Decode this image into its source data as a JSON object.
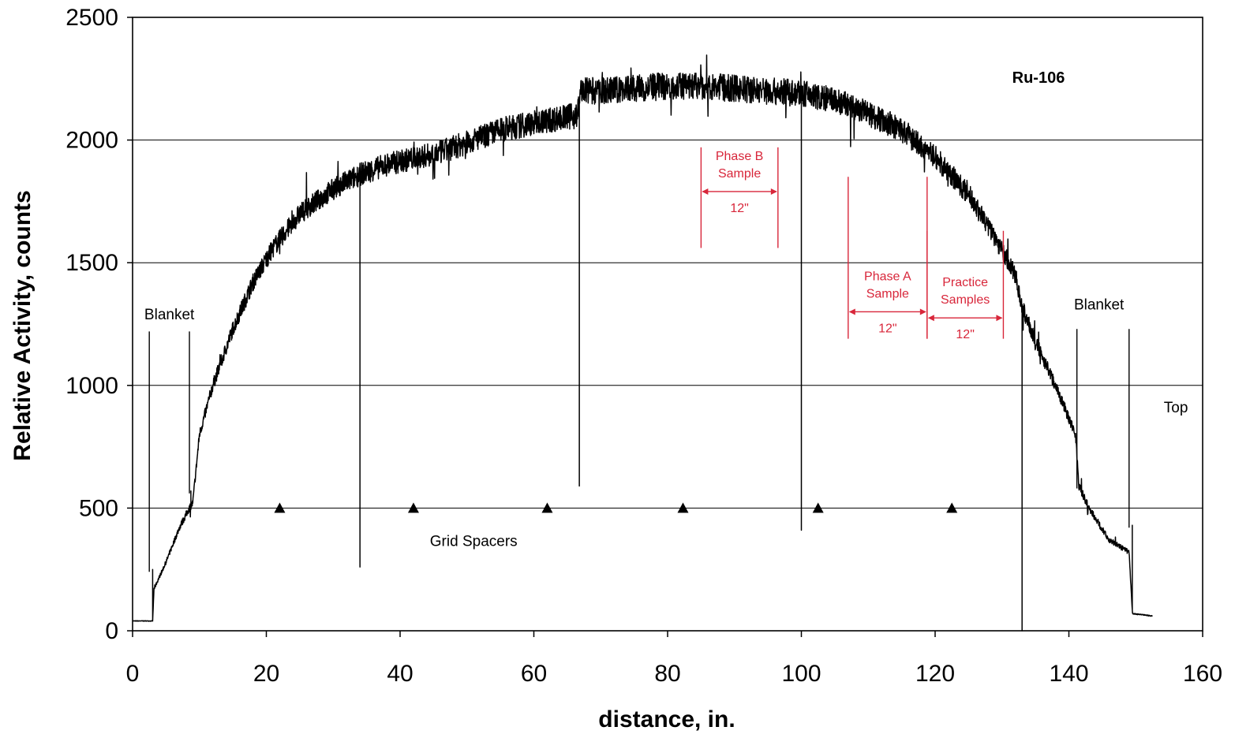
{
  "chart_data": {
    "type": "line",
    "title": "Ru-106",
    "xlabel": "distance, in.",
    "ylabel": "Relative Activity, counts",
    "xlim": [
      0,
      160
    ],
    "ylim": [
      0,
      2500
    ],
    "x_ticks": [
      "0",
      "20",
      "40",
      "60",
      "80",
      "100",
      "120",
      "140",
      "160"
    ],
    "y_ticks": [
      "0",
      "500",
      "1000",
      "1500",
      "2000",
      "2500"
    ],
    "grid": "horizontal",
    "colors": {
      "line": "#000000",
      "annotation_red": "#d8263a"
    },
    "series": [
      {
        "x": [
          0,
          3,
          3.2,
          5,
          7,
          8.5,
          9,
          10,
          12,
          15,
          18,
          21,
          25,
          30,
          34,
          38,
          42,
          46,
          50,
          55,
          60,
          64,
          66.5,
          67,
          70,
          75,
          80,
          85,
          90,
          95,
          100,
          105,
          110,
          115,
          120,
          125,
          129,
          132,
          133,
          135,
          138,
          141,
          141.5,
          143,
          146,
          149,
          149.5,
          152.5
        ],
        "y": [
          40,
          40,
          170,
          280,
          420,
          500,
          520,
          800,
          1000,
          1230,
          1420,
          1560,
          1700,
          1800,
          1860,
          1900,
          1925,
          1950,
          1990,
          2040,
          2070,
          2090,
          2100,
          2200,
          2200,
          2210,
          2220,
          2220,
          2210,
          2200,
          2190,
          2160,
          2110,
          2040,
          1930,
          1780,
          1600,
          1450,
          1320,
          1180,
          1000,
          800,
          590,
          500,
          370,
          320,
          70,
          60
        ]
      }
    ],
    "dips": [
      {
        "x": 3,
        "min": 250
      },
      {
        "x": 8.7,
        "min": 570
      },
      {
        "x": 34,
        "min": 260
      },
      {
        "x": 66.8,
        "min": 590
      },
      {
        "x": 100,
        "min": 410
      },
      {
        "x": 133,
        "min": 0
      },
      {
        "x": 141.5,
        "min": 580
      },
      {
        "x": 149.5,
        "min": 430
      }
    ],
    "grid_spacers": {
      "label": "Grid Spacers",
      "y": 500,
      "x": [
        22,
        42,
        62,
        82.3,
        102.5,
        122.5
      ]
    },
    "annotations": [
      {
        "text": "Blanket",
        "x": 5.5,
        "y": 1270
      },
      {
        "text": "Blanket",
        "x": 144.5,
        "y": 1310
      },
      {
        "text": "Top",
        "x": 156,
        "y": 890
      },
      {
        "text": "Grid Spacers",
        "x": 51,
        "y": 345
      }
    ],
    "markers": [
      {
        "label": "Blanket",
        "x": 2.5,
        "y_from": 240,
        "y_to": 1220
      },
      {
        "label": "Blanket",
        "x": 8.5,
        "y_from": 560,
        "y_to": 1220
      },
      {
        "label": "Blanket",
        "x": 141.2,
        "y_from": 580,
        "y_to": 1230
      },
      {
        "label": "Blanket",
        "x": 149,
        "y_from": 420,
        "y_to": 1230
      }
    ],
    "sample_regions": [
      {
        "lines": [
          "Phase B",
          "Sample"
        ],
        "length": "12\"",
        "x_start": 85,
        "x_end": 96.5,
        "y_top": 1970,
        "y_bottom": 1560,
        "arrow_y": 1790
      },
      {
        "lines": [
          "Phase A",
          "Sample"
        ],
        "length": "12\"",
        "x_start": 107,
        "x_end": 118.8,
        "y_top": 1850,
        "y_bottom": 1190,
        "arrow_y": 1300
      },
      {
        "lines": [
          "Practice",
          "Samples"
        ],
        "length": "12\"",
        "x_start": 118.8,
        "x_end": 130.2,
        "y_top": 1630,
        "y_bottom": 1190,
        "arrow_y": 1275
      }
    ]
  }
}
